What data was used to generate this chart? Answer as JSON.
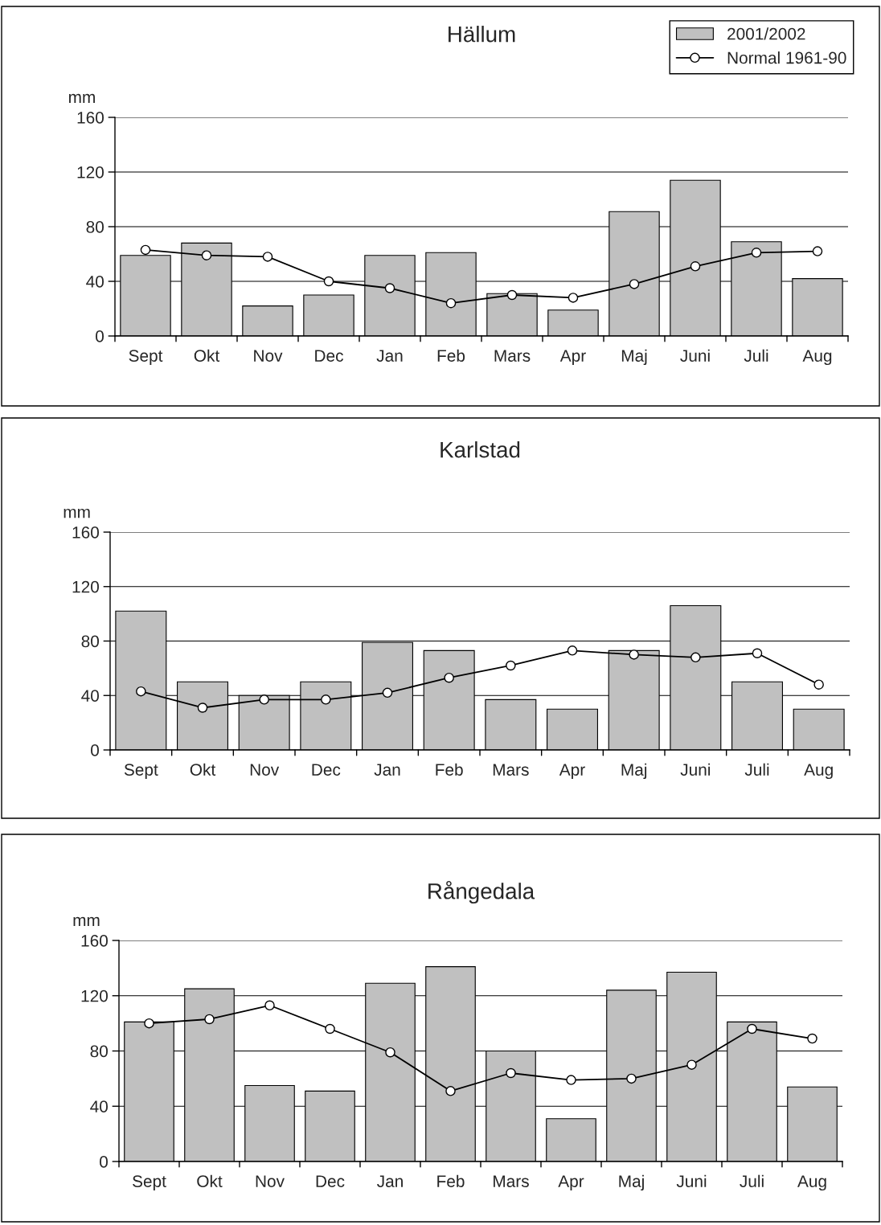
{
  "chart_data": [
    {
      "type": "bar",
      "title": "Hällum",
      "ylabel": "mm",
      "categories": [
        "Sept",
        "Okt",
        "Nov",
        "Dec",
        "Jan",
        "Feb",
        "Mars",
        "Apr",
        "Maj",
        "Juni",
        "Juli",
        "Aug"
      ],
      "series": [
        {
          "name": "2001/2002",
          "color": "#c0c0c0",
          "values": [
            59,
            68,
            22,
            30,
            59,
            61,
            31,
            19,
            91,
            114,
            69,
            42
          ]
        },
        {
          "name": "Normal 1961-90",
          "type": "line",
          "marker": "circle",
          "color": "#000000",
          "values": [
            63,
            59,
            58,
            40,
            35,
            24,
            30,
            28,
            38,
            51,
            61,
            62
          ]
        }
      ],
      "ylim": [
        0,
        160
      ],
      "yticks": [
        0,
        40,
        80,
        120,
        160
      ],
      "grid": "y",
      "legend": "top right"
    },
    {
      "type": "bar",
      "title": "Karlstad",
      "ylabel": "mm",
      "categories": [
        "Sept",
        "Okt",
        "Nov",
        "Dec",
        "Jan",
        "Feb",
        "Mars",
        "Apr",
        "Maj",
        "Juni",
        "Juli",
        "Aug"
      ],
      "series": [
        {
          "color": "#c0c0c0",
          "values": [
            102,
            50,
            40,
            50,
            79,
            73,
            37,
            30,
            73,
            106,
            50,
            30
          ]
        },
        {
          "type": "line",
          "marker": "circle",
          "color": "#000000",
          "values": [
            43,
            31,
            37,
            37,
            42,
            53,
            62,
            73,
            70,
            68,
            71,
            48
          ]
        }
      ],
      "ylim": [
        0,
        160
      ],
      "yticks": [
        0,
        40,
        80,
        120,
        160
      ],
      "grid": "y"
    },
    {
      "type": "bar",
      "title": "Rångedala",
      "ylabel": "mm",
      "categories": [
        "Sept",
        "Okt",
        "Nov",
        "Dec",
        "Jan",
        "Feb",
        "Mars",
        "Apr",
        "Maj",
        "Juni",
        "Juli",
        "Aug"
      ],
      "series": [
        {
          "color": "#c0c0c0",
          "values": [
            101,
            125,
            55,
            51,
            129,
            141,
            80,
            31,
            124,
            137,
            101,
            54
          ]
        },
        {
          "type": "line",
          "marker": "circle",
          "color": "#000000",
          "values": [
            100,
            103,
            113,
            96,
            79,
            51,
            64,
            59,
            60,
            70,
            96,
            89
          ]
        }
      ],
      "ylim": [
        0,
        160
      ],
      "yticks": [
        0,
        40,
        80,
        120,
        160
      ],
      "grid": "y"
    }
  ]
}
